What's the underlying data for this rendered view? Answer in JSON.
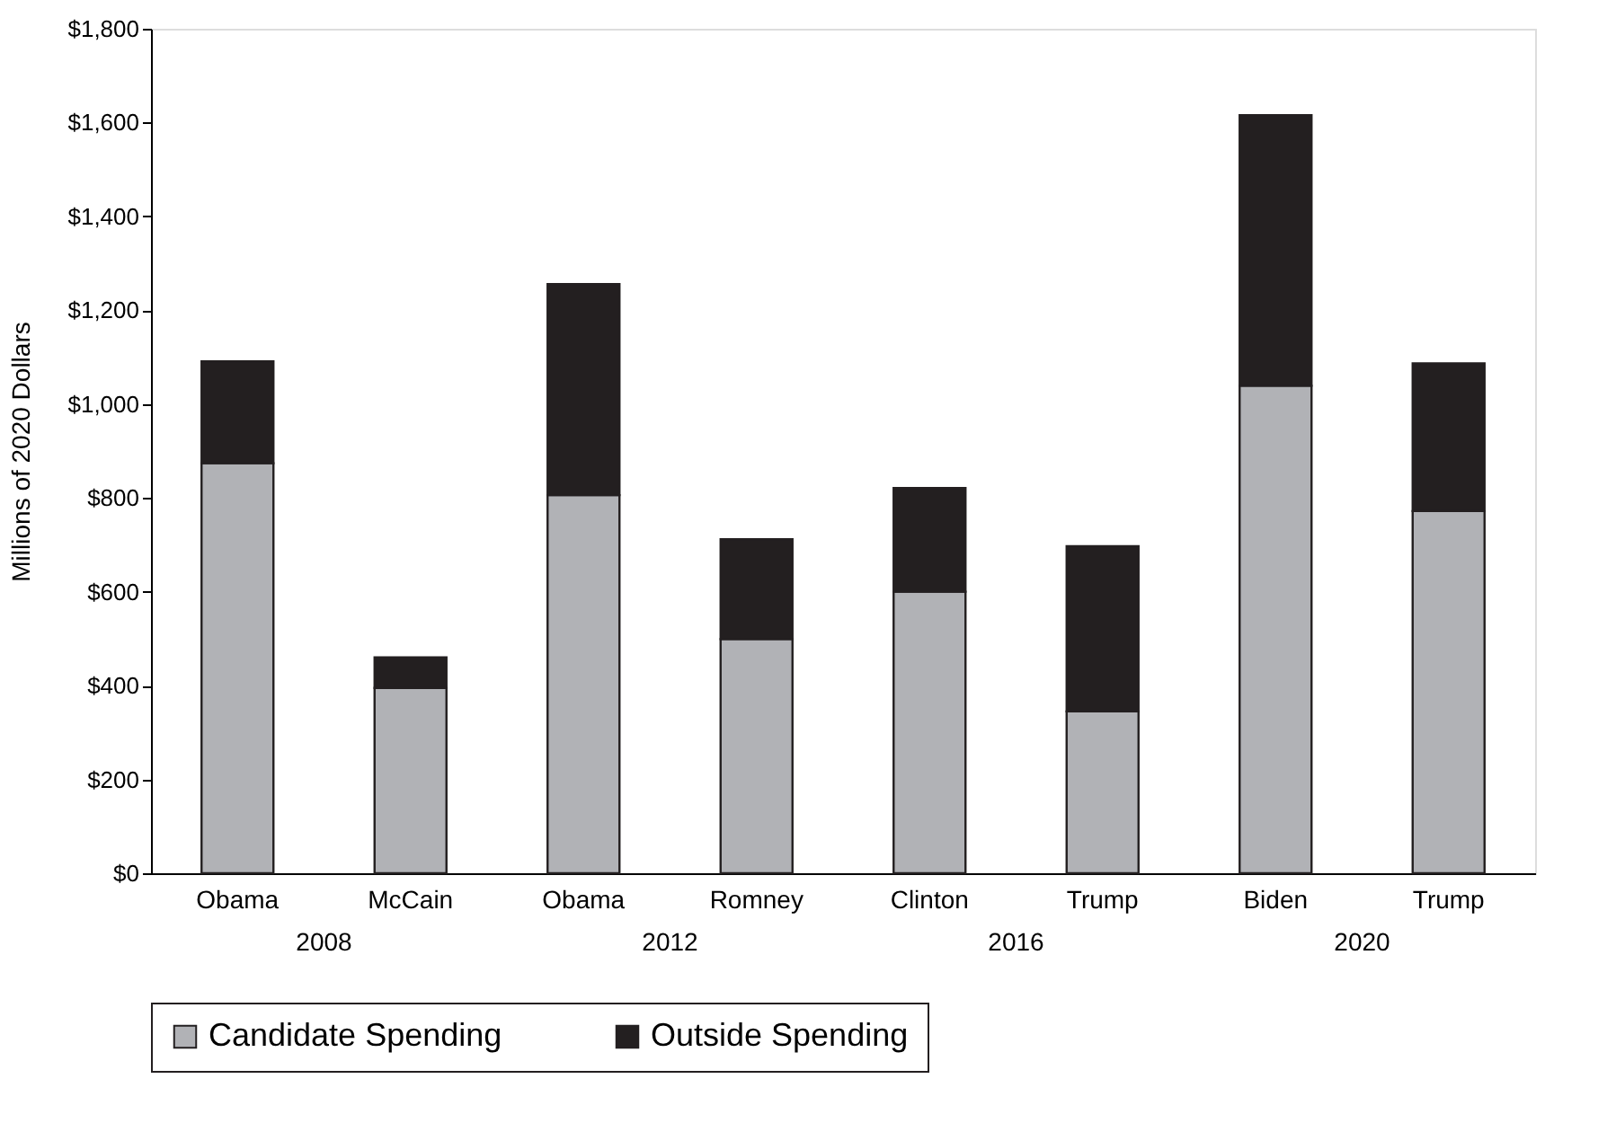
{
  "chart_data": {
    "type": "bar",
    "stacked": true,
    "categories": [
      "Obama",
      "McCain",
      "Obama",
      "Romney",
      "Clinton",
      "Trump",
      "Biden",
      "Trump"
    ],
    "series": [
      {
        "name": "Candidate Spending",
        "color": "#b1b2b6",
        "values": [
          874,
          395,
          806,
          499,
          600,
          345,
          1039,
          772
        ]
      },
      {
        "name": "Outside Spending",
        "color": "#231f20",
        "values": [
          217,
          65,
          450,
          213,
          221,
          352,
          577,
          315
        ]
      }
    ],
    "ylabel": "Millions of 2020 Dollars",
    "ylim": [
      0,
      1800
    ],
    "yticks": [
      {
        "value": 0,
        "label": "$0"
      },
      {
        "value": 200,
        "label": "$200"
      },
      {
        "value": 400,
        "label": "$400"
      },
      {
        "value": 600,
        "label": "$600"
      },
      {
        "value": 800,
        "label": "$800"
      },
      {
        "value": 1000,
        "label": "$1,000"
      },
      {
        "value": 1200,
        "label": "$1,200"
      },
      {
        "value": 1400,
        "label": "$1,400"
      },
      {
        "value": 1600,
        "label": "$1,600"
      },
      {
        "value": 1800,
        "label": "$1,800"
      }
    ],
    "annotations": [
      "2008",
      "2012",
      "2016",
      "2020"
    ],
    "grid": false,
    "legend": "bottom"
  }
}
